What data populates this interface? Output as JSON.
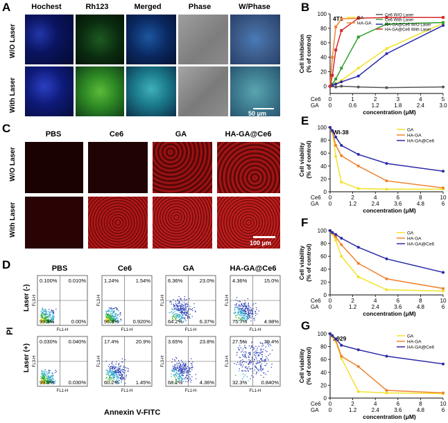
{
  "panelA": {
    "label": "A",
    "columns": [
      "Hochest",
      "Rh123",
      "Merged",
      "Phase",
      "W/Phase"
    ],
    "rows": [
      "W/O Laser",
      "With Laser"
    ],
    "scalebar": "50 μm"
  },
  "panelC": {
    "label": "C",
    "columns": [
      "PBS",
      "Ce6",
      "GA",
      "HA-GA@Ce6"
    ],
    "rows": [
      "W/O Laser",
      "With Laser"
    ],
    "scalebar": "100 μm"
  },
  "panelD": {
    "label": "D",
    "columns": [
      "PBS",
      "Ce6",
      "GA",
      "HA-GA@Ce6"
    ],
    "rows": [
      "Laser (-)",
      "Laser (+)"
    ],
    "y_axis": "PI",
    "x_axis": "Annexin V-FITC",
    "plot_xlabel": "FL1-H",
    "plot_ylabel": "FL3-H",
    "quadrants": [
      [
        [
          "0.100%",
          "0.010%",
          "99.9%",
          "0.00%"
        ],
        [
          "1.24%",
          "1.54%",
          "96.3%",
          "0.920%"
        ],
        [
          "6.36%",
          "23.0%",
          "64.2%",
          "6.37%"
        ],
        [
          "4.36%",
          "15.0%",
          "75.7%",
          "4.98%"
        ]
      ],
      [
        [
          "0.030%",
          "0.040%",
          "99.9%",
          "0.030%"
        ],
        [
          "17.4%",
          "20.9%",
          "60.2%",
          "1.45%"
        ],
        [
          "3.65%",
          "23.8%",
          "68.2%",
          "4.36%"
        ],
        [
          "27.5%",
          "39.4%",
          "32.3%",
          "0.840%"
        ]
      ]
    ]
  },
  "chart_data": [
    {
      "id": "B",
      "type": "line",
      "label": "B",
      "title": "4T1",
      "ylabel": "Cell Inhibition (% of control)",
      "xlabel": "concentration (μM)",
      "ylim": [
        -10,
        100
      ],
      "yticks": [
        0,
        20,
        40,
        60,
        80,
        100
      ],
      "xlim": [
        0,
        5
      ],
      "xticks_ce6": [
        "0",
        "1",
        "2",
        "3",
        "4",
        "5"
      ],
      "xticks_ga": [
        "0",
        "0.6",
        "1.2",
        "1.8",
        "2.4",
        "3.0"
      ],
      "series": [
        {
          "name": "GA",
          "color": "#f2e227",
          "x": [
            0,
            0.1,
            0.25,
            0.5,
            1.25,
            2.5,
            5
          ],
          "y": [
            0,
            2,
            4,
            8,
            25,
            52,
            87
          ]
        },
        {
          "name": "HA-GA",
          "color": "#f0822e",
          "x": [
            0,
            0.1,
            0.25,
            0.5,
            1.25
          ],
          "y": [
            0,
            40,
            82,
            93,
            94
          ]
        },
        {
          "name": "Ce6 W/O Laser",
          "color": "#555555",
          "x": [
            0,
            0.25,
            0.5,
            1.25,
            2.5,
            5
          ],
          "y": [
            0,
            -1,
            0,
            -1,
            -2,
            -1
          ]
        },
        {
          "name": "Ce6 With Laser",
          "color": "#2ea02e",
          "x": [
            0,
            0.1,
            0.25,
            0.5,
            1.25,
            2.5,
            5
          ],
          "y": [
            0,
            3,
            10,
            25,
            68,
            86,
            88
          ]
        },
        {
          "name": "HA-GA@Ce6 W/O Laser",
          "color": "#2a2aa8",
          "x": [
            0,
            0.1,
            0.25,
            0.5,
            1.25,
            2.5,
            5
          ],
          "y": [
            0,
            1,
            3,
            6,
            14,
            45,
            84
          ]
        },
        {
          "name": "HA-GA@Ce6 With Laser",
          "color": "#d62728",
          "x": [
            0,
            0.1,
            0.25,
            0.5,
            1.25,
            2.5,
            5
          ],
          "y": [
            0,
            15,
            50,
            77,
            94,
            95,
            95
          ]
        }
      ],
      "legend_left": [
        "GA",
        "HA-GA"
      ],
      "legend_right": [
        "Ce6 W/O Laser",
        "Ce6 With Laser",
        "HA-GA@Ce6 W/O Laser",
        "HA-GA@Ce6 With Laser"
      ]
    },
    {
      "id": "E",
      "type": "line",
      "label": "E",
      "title": "WI-38",
      "ylabel": "Cell viability (% of control)",
      "xlabel": "concentration (μM)",
      "ylim": [
        0,
        100
      ],
      "yticks": [
        0,
        20,
        40,
        60,
        80,
        100
      ],
      "xlim": [
        0,
        10
      ],
      "xticks_ce6": [
        "0",
        "2",
        "4",
        "6",
        "8",
        "10"
      ],
      "xticks_ga": [
        "0",
        "1.2",
        "2.4",
        "3.6",
        "4.8",
        "6"
      ],
      "series": [
        {
          "name": "GA",
          "color": "#f2e227",
          "x": [
            0,
            0.2,
            0.5,
            1,
            2.5,
            5,
            10
          ],
          "y": [
            100,
            95,
            55,
            15,
            5,
            4,
            4
          ]
        },
        {
          "name": "HA-GA",
          "color": "#f0822e",
          "x": [
            0,
            0.2,
            0.5,
            1,
            2.5,
            5,
            10
          ],
          "y": [
            100,
            93,
            72,
            56,
            40,
            17,
            6
          ]
        },
        {
          "name": "HA-GA@Ce6",
          "color": "#2a2aa8",
          "x": [
            0,
            0.2,
            0.5,
            1,
            2.5,
            5,
            10
          ],
          "y": [
            100,
            95,
            85,
            72,
            58,
            44,
            32
          ]
        }
      ],
      "legend": [
        "GA",
        "HA-GA",
        "HA-GA@Ce6"
      ]
    },
    {
      "id": "F",
      "type": "line",
      "label": "F",
      "title": "",
      "ylabel": "Cell viability (% of control)",
      "xlabel": "concentration (μM)",
      "ylim": [
        0,
        100
      ],
      "yticks": [
        0,
        20,
        40,
        60,
        80,
        100
      ],
      "xlim": [
        0,
        10
      ],
      "xticks_ce6": [
        "0",
        "2",
        "4",
        "6",
        "8",
        "10"
      ],
      "xticks_ga": [
        "0",
        "1.2",
        "2.4",
        "3.6",
        "4.8",
        "6"
      ],
      "series": [
        {
          "name": "GA",
          "color": "#f2e227",
          "x": [
            0,
            0.2,
            0.5,
            1,
            2.5,
            5,
            10
          ],
          "y": [
            100,
            95,
            85,
            60,
            28,
            8,
            6
          ]
        },
        {
          "name": "HA-GA",
          "color": "#f0822e",
          "x": [
            0,
            0.2,
            0.5,
            1,
            2.5,
            5,
            10
          ],
          "y": [
            100,
            96,
            90,
            78,
            49,
            25,
            10
          ]
        },
        {
          "name": "HA-GA@Ce6",
          "color": "#2a2aa8",
          "x": [
            0,
            0.2,
            0.5,
            1,
            2.5,
            5,
            10
          ],
          "y": [
            100,
            97,
            94,
            88,
            74,
            56,
            35
          ]
        }
      ],
      "legend": [
        "GA",
        "HA-GA",
        "HA-GA@Ce6"
      ]
    },
    {
      "id": "G",
      "type": "line",
      "label": "G",
      "title": "L929",
      "ylabel": "Cell viability (% of control)",
      "xlabel": "concentration (μM)",
      "ylim": [
        0,
        100
      ],
      "yticks": [
        0,
        20,
        40,
        60,
        80,
        100
      ],
      "xlim": [
        0,
        10
      ],
      "xticks_ce6": [
        "0",
        "2",
        "4",
        "6",
        "8",
        "10"
      ],
      "xticks_ga": [
        "0",
        "1.2",
        "2.4",
        "3.6",
        "4.8",
        "6"
      ],
      "series": [
        {
          "name": "GA",
          "color": "#f2e227",
          "x": [
            0,
            0.2,
            0.5,
            1,
            2.5,
            5,
            10
          ],
          "y": [
            100,
            95,
            88,
            62,
            10,
            8,
            7
          ]
        },
        {
          "name": "HA-GA",
          "color": "#f0822e",
          "x": [
            0,
            0.2,
            0.5,
            1,
            2.5,
            5,
            10
          ],
          "y": [
            100,
            96,
            90,
            65,
            49,
            12,
            8
          ]
        },
        {
          "name": "HA-GA@Ce6",
          "color": "#2a2aa8",
          "x": [
            0,
            0.2,
            0.5,
            1,
            2.5,
            5,
            10
          ],
          "y": [
            100,
            97,
            92,
            82,
            75,
            65,
            53
          ]
        }
      ],
      "legend": [
        "GA",
        "HA-GA",
        "HA-GA@Ce6"
      ]
    }
  ],
  "tick_row_labels": [
    "Ce6",
    "GA"
  ]
}
